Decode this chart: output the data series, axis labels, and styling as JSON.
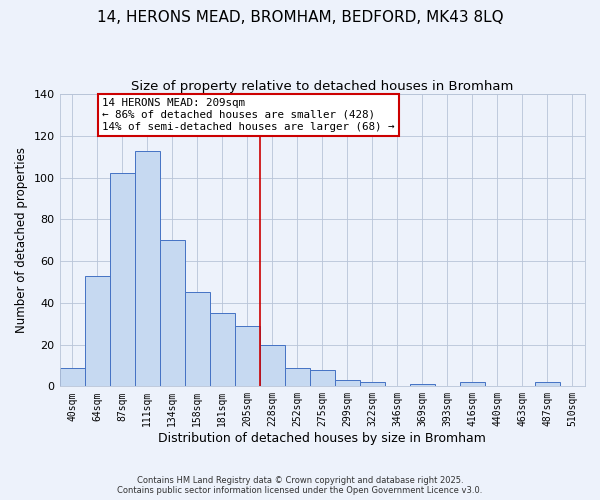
{
  "title": "14, HERONS MEAD, BROMHAM, BEDFORD, MK43 8LQ",
  "subtitle": "Size of property relative to detached houses in Bromham",
  "xlabel": "Distribution of detached houses by size in Bromham",
  "ylabel": "Number of detached properties",
  "bar_labels": [
    "40sqm",
    "64sqm",
    "87sqm",
    "111sqm",
    "134sqm",
    "158sqm",
    "181sqm",
    "205sqm",
    "228sqm",
    "252sqm",
    "275sqm",
    "299sqm",
    "322sqm",
    "346sqm",
    "369sqm",
    "393sqm",
    "416sqm",
    "440sqm",
    "463sqm",
    "487sqm",
    "510sqm"
  ],
  "bar_values": [
    9,
    53,
    102,
    113,
    70,
    45,
    35,
    29,
    20,
    9,
    8,
    3,
    2,
    0,
    1,
    0,
    2,
    0,
    0,
    2,
    0
  ],
  "bar_color": "#c6d9f1",
  "bar_edge_color": "#4472c4",
  "vline_color": "#cc0000",
  "annotation_title": "14 HERONS MEAD: 209sqm",
  "annotation_line1": "← 86% of detached houses are smaller (428)",
  "annotation_line2": "14% of semi-detached houses are larger (68) →",
  "annotation_box_color": "#ffffff",
  "annotation_box_edge": "#cc0000",
  "ylim": [
    0,
    140
  ],
  "yticks": [
    0,
    20,
    40,
    60,
    80,
    100,
    120,
    140
  ],
  "background_color": "#edf2fb",
  "plot_bg_color": "#edf2fb",
  "footer1": "Contains HM Land Registry data © Crown copyright and database right 2025.",
  "footer2": "Contains public sector information licensed under the Open Government Licence v3.0.",
  "title_fontsize": 11,
  "subtitle_fontsize": 9.5,
  "xlabel_fontsize": 9,
  "ylabel_fontsize": 8.5,
  "vline_bar_index": 7
}
